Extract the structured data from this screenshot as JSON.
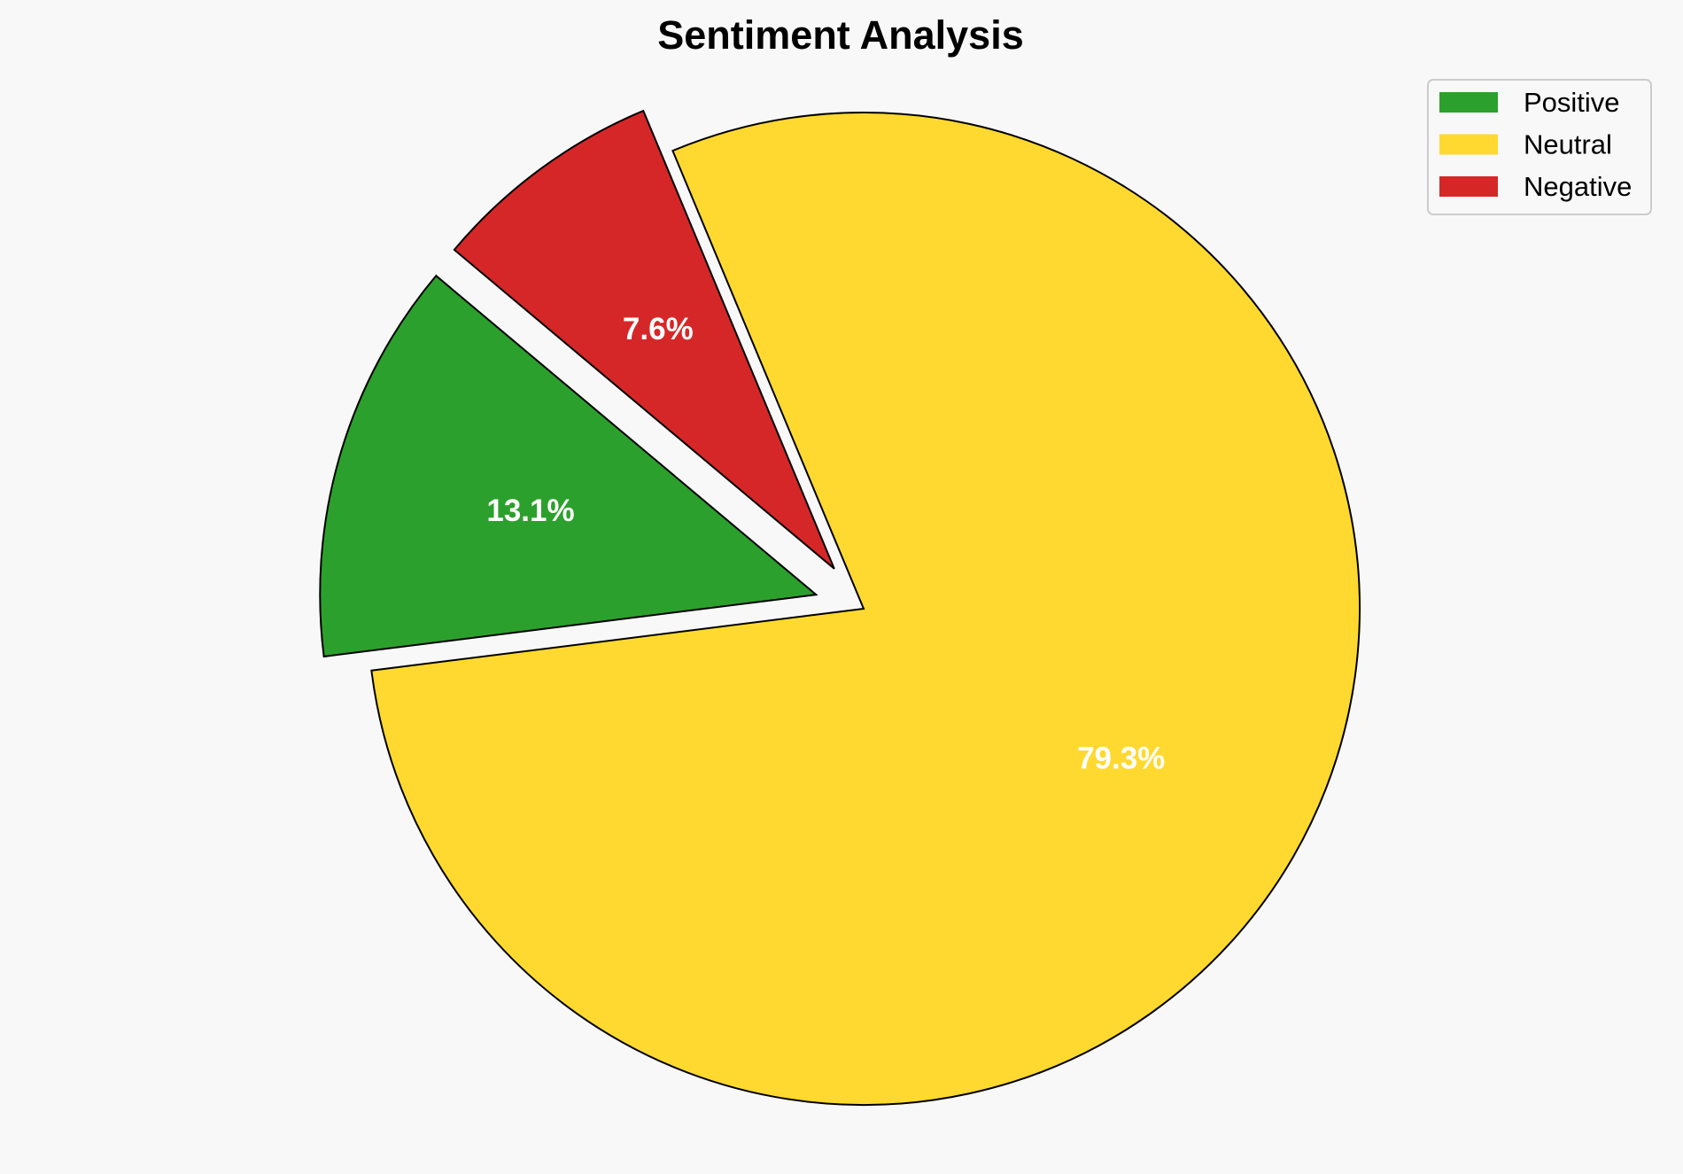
{
  "chart_data": {
    "type": "pie",
    "title": "Sentiment Analysis",
    "categories": [
      "Positive",
      "Neutral",
      "Negative"
    ],
    "values": [
      13.1,
      79.3,
      7.6
    ],
    "labels": [
      "13.1%",
      "79.3%",
      "7.6%"
    ],
    "colors": [
      "#2ca02c",
      "#ffd92f",
      "#d62728"
    ],
    "explode": [
      0.1,
      0,
      0.1
    ],
    "start_angle": 140,
    "counterclockwise": true,
    "legend_position": "top-right",
    "edge_color": "#000000"
  }
}
